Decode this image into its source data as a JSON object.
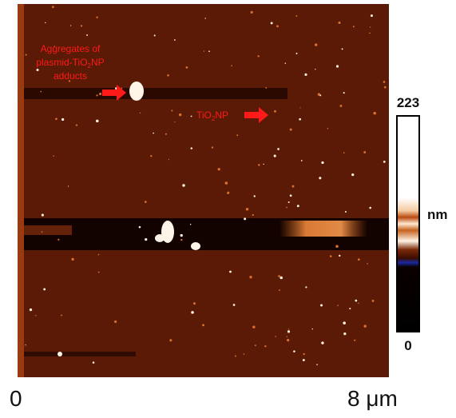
{
  "annotations": [
    {
      "lines": [
        [
          "Aggregates of"
        ],
        [
          "plasmid-TiO",
          "2",
          "NP"
        ],
        [
          "adducts"
        ]
      ]
    },
    {
      "lines": [
        [
          "TiO",
          "2",
          "NP"
        ]
      ]
    }
  ],
  "scale_bar": {
    "start": "0",
    "end": "8 μm"
  },
  "colorbar": {
    "max": "223",
    "min": "0",
    "unit": "nm"
  }
}
